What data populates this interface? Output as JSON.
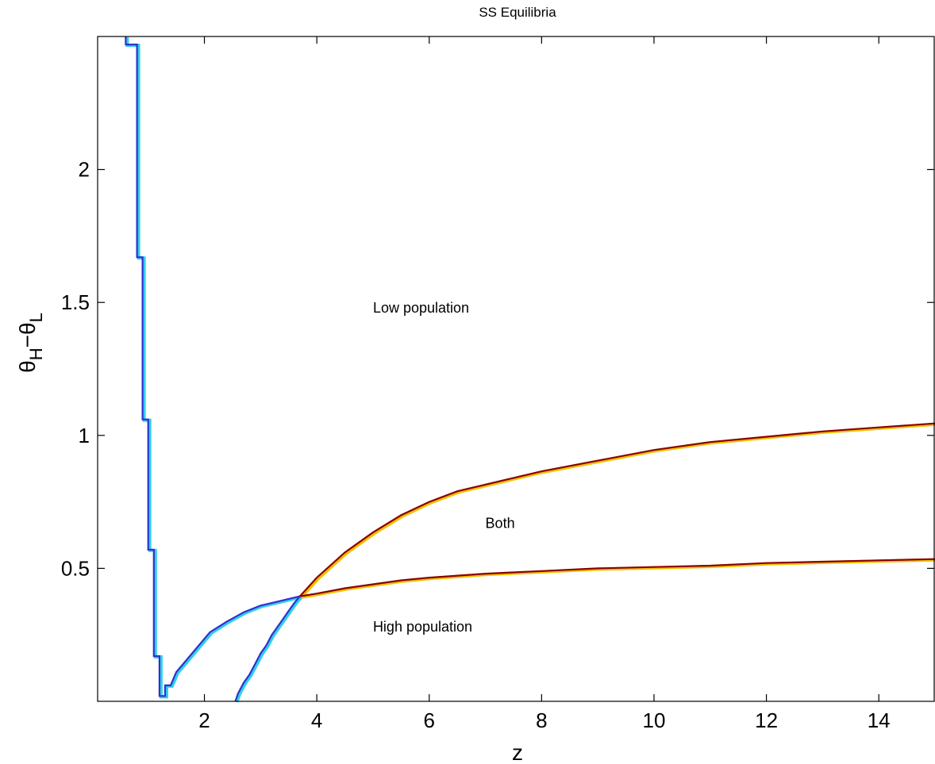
{
  "chart_data": {
    "type": "line",
    "title": "SS Equilibria",
    "xlabel": "z",
    "ylabel_main": "θ",
    "ylabel_sub1": "H",
    "ylabel_mid": "−θ",
    "ylabel_sub2": "L",
    "xlim": [
      0.1,
      15.0
    ],
    "ylim": [
      0.0,
      2.5
    ],
    "xticks": [
      2,
      4,
      6,
      8,
      10,
      12,
      14
    ],
    "yticks": [
      0.5,
      1,
      1.5,
      2
    ],
    "xtick_labels": [
      "2",
      "4",
      "6",
      "8",
      "10",
      "12",
      "14"
    ],
    "ytick_labels": [
      "0.5",
      "1",
      "1.5",
      "2"
    ],
    "grid": false,
    "annotations": [
      {
        "text": "Low population",
        "x": 5.0,
        "y": 1.48
      },
      {
        "text": "Both",
        "x": 7.0,
        "y": 0.67
      },
      {
        "text": "High population",
        "x": 5.0,
        "y": 0.28
      }
    ],
    "series": [
      {
        "color": "#3030d0",
        "edge_color": "#30d0e8",
        "points": [
          [
            0.6,
            2.5
          ],
          [
            0.6,
            2.47
          ],
          [
            0.8,
            2.47
          ],
          [
            0.8,
            1.67
          ],
          [
            0.9,
            1.67
          ],
          [
            0.9,
            1.06
          ],
          [
            1.0,
            1.06
          ],
          [
            1.0,
            0.57
          ],
          [
            1.1,
            0.57
          ],
          [
            1.1,
            0.17
          ],
          [
            1.2,
            0.17
          ],
          [
            1.2,
            0.02
          ],
          [
            1.3,
            0.02
          ],
          [
            1.3,
            0.06
          ],
          [
            1.4,
            0.06
          ],
          [
            1.5,
            0.11
          ],
          [
            1.7,
            0.16
          ],
          [
            1.9,
            0.21
          ],
          [
            2.1,
            0.26
          ],
          [
            2.4,
            0.3
          ],
          [
            2.7,
            0.335
          ],
          [
            3.0,
            0.36
          ],
          [
            3.3,
            0.375
          ],
          [
            3.5,
            0.385
          ],
          [
            3.7,
            0.395
          ]
        ]
      },
      {
        "color": "#3030d0",
        "edge_color": "#30d0e8",
        "points": [
          [
            2.55,
            0.0
          ],
          [
            2.6,
            0.03
          ],
          [
            2.7,
            0.07
          ],
          [
            2.8,
            0.1
          ],
          [
            2.9,
            0.14
          ],
          [
            3.0,
            0.18
          ],
          [
            3.1,
            0.21
          ],
          [
            3.2,
            0.25
          ],
          [
            3.3,
            0.28
          ],
          [
            3.4,
            0.31
          ],
          [
            3.5,
            0.34
          ],
          [
            3.6,
            0.37
          ],
          [
            3.7,
            0.395
          ]
        ]
      },
      {
        "color": "#8b0000",
        "edge_color": "#f0c000",
        "points": [
          [
            3.7,
            0.395
          ],
          [
            4.0,
            0.465
          ],
          [
            4.5,
            0.56
          ],
          [
            5.0,
            0.635
          ],
          [
            5.5,
            0.7
          ],
          [
            6.0,
            0.75
          ],
          [
            6.5,
            0.79
          ],
          [
            7.0,
            0.815
          ],
          [
            8.0,
            0.865
          ],
          [
            9.0,
            0.905
          ],
          [
            10.0,
            0.945
          ],
          [
            11.0,
            0.975
          ],
          [
            12.0,
            0.995
          ],
          [
            13.0,
            1.015
          ],
          [
            14.0,
            1.03
          ],
          [
            15.0,
            1.045
          ]
        ]
      },
      {
        "color": "#8b0000",
        "edge_color": "#f0c000",
        "points": [
          [
            3.7,
            0.395
          ],
          [
            4.0,
            0.405
          ],
          [
            4.5,
            0.425
          ],
          [
            5.0,
            0.44
          ],
          [
            5.5,
            0.455
          ],
          [
            6.0,
            0.465
          ],
          [
            7.0,
            0.48
          ],
          [
            8.0,
            0.49
          ],
          [
            9.0,
            0.5
          ],
          [
            10.0,
            0.505
          ],
          [
            11.0,
            0.51
          ],
          [
            12.0,
            0.52
          ],
          [
            13.0,
            0.525
          ],
          [
            14.0,
            0.53
          ],
          [
            15.0,
            0.535
          ]
        ]
      }
    ]
  }
}
